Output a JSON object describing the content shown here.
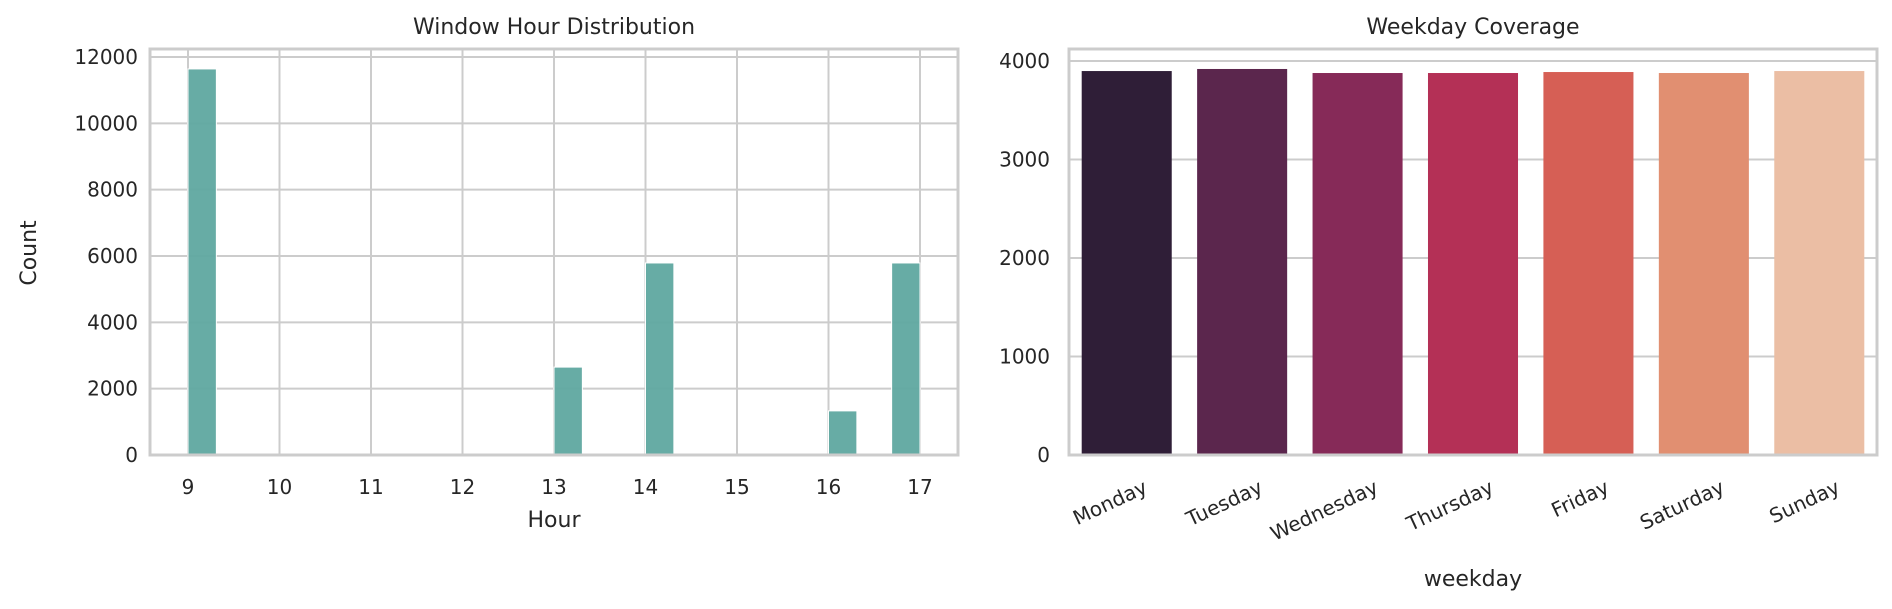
{
  "chart_data": [
    {
      "type": "bar",
      "subtype": "histogram",
      "title": "Window Hour Distribution",
      "xlabel": "Hour",
      "ylabel": "Count",
      "xlim": [
        8.6,
        17.4
      ],
      "ylim": [
        0,
        12300
      ],
      "xticks": [
        "9",
        "10",
        "11",
        "12",
        "13",
        "14",
        "15",
        "16",
        "17"
      ],
      "yticks": [
        "0",
        "2000",
        "4000",
        "6000",
        "8000",
        "10000",
        "12000"
      ],
      "grid": true,
      "color": "#5fa8a0",
      "bins": [
        {
          "x_start": 9.0,
          "x_end": 9.31,
          "value": 11640
        },
        {
          "x_start": 13.0,
          "x_end": 13.31,
          "value": 2650
        },
        {
          "x_start": 14.0,
          "x_end": 14.31,
          "value": 5790
        },
        {
          "x_start": 16.0,
          "x_end": 16.31,
          "value": 1330
        },
        {
          "x_start": 16.69,
          "x_end": 17.0,
          "value": 5790
        }
      ]
    },
    {
      "type": "bar",
      "title": "Weekday Coverage",
      "xlabel": "weekday",
      "ylabel": "",
      "ylim": [
        0,
        4150
      ],
      "yticks": [
        "0",
        "1000",
        "2000",
        "3000",
        "4000"
      ],
      "grid": true,
      "categories": [
        "Monday",
        "Tuesday",
        "Wednesday",
        "Thursday",
        "Friday",
        "Saturday",
        "Sunday"
      ],
      "values": [
        3898,
        3919,
        3878,
        3878,
        3888,
        3878,
        3898
      ],
      "colors": [
        "#2f1e37",
        "#5b264d",
        "#862a58",
        "#b43056",
        "#d65f55",
        "#e18f71",
        "#ebbea4"
      ]
    }
  ]
}
